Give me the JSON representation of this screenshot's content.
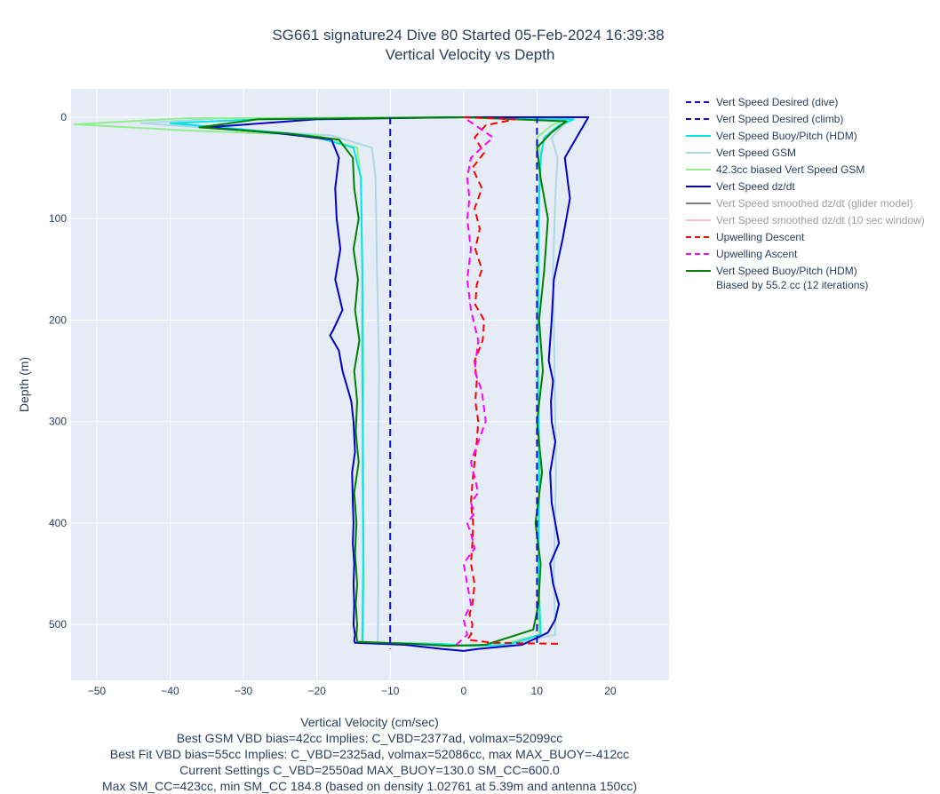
{
  "chart_data": {
    "type": "line",
    "title": "SG661 signature24 Dive 80 Started 05-Feb-2024 16:39:38",
    "subtitle": "Vertical Velocity vs Depth",
    "xlabel": "Vertical Velocity (cm/sec)",
    "ylabel": "Depth (m)",
    "xlim": [
      -53.5,
      28
    ],
    "ylim": [
      555,
      -28
    ],
    "y_reversed": true,
    "grid": true,
    "legend_position": "right",
    "x_ticks": [
      -50,
      -40,
      -30,
      -20,
      -10,
      0,
      10,
      20
    ],
    "x_tick_labels": [
      "−50",
      "−40",
      "−30",
      "−20",
      "−10",
      "0",
      "10",
      "20"
    ],
    "y_ticks": [
      0,
      100,
      200,
      300,
      400,
      500
    ],
    "y_tick_labels": [
      "0",
      "100",
      "200",
      "300",
      "400",
      "500"
    ],
    "captions": [
      "Best GSM VBD bias=42cc Implies: C_VBD=2377ad, volmax=52099cc",
      "Best Fit VBD bias=55cc Implies: C_VBD=2325ad, volmax=52086cc, max MAX_BUOY=-412cc",
      "Current Settings C_VBD=2550ad MAX_BUOY=130.0 SM_CC=600.0",
      "Max SM_CC=423cc, min SM_CC 184.8 (based on density 1.02761 at 5.39m and antenna 150cc)"
    ],
    "series": [
      {
        "name": "Vert Speed Desired (dive)",
        "color": "#1010c8",
        "dash": "dashed",
        "visible": true,
        "x": [
          -10,
          -10
        ],
        "y": [
          0,
          524
        ]
      },
      {
        "name": "Vert Speed Desired (climb)",
        "color": "#1010c8",
        "dash": "dashed",
        "visible": true,
        "x": [
          10,
          10
        ],
        "y": [
          518,
          0
        ]
      },
      {
        "name": "Vert Speed Buoy/Pitch (HDM)",
        "color": "#00e5e5",
        "dash": "solid",
        "visible": true,
        "x": [
          0,
          -28,
          -40,
          -30,
          -21,
          -15,
          -14,
          -13.8,
          -13.8,
          -13.7,
          -13.7,
          -13.8,
          -13.6,
          -4,
          1,
          6,
          10.5,
          10.2,
          10.3,
          10.1,
          10.2,
          10.3,
          10.5,
          11,
          13,
          15,
          0
        ],
        "y": [
          0,
          2,
          6,
          12,
          18,
          30,
          60,
          150,
          250,
          350,
          450,
          516,
          518,
          519,
          521,
          520,
          510,
          450,
          350,
          250,
          150,
          80,
          40,
          20,
          8,
          2,
          0
        ]
      },
      {
        "name": "Vert Speed GSM",
        "color": "#add8e6",
        "dash": "solid",
        "visible": true,
        "x": [
          0,
          -33,
          -44,
          -32,
          -18,
          -12.5,
          -12,
          -11.8,
          -11.5,
          -11.7,
          -11.6,
          -11.7,
          -11.7,
          -4,
          2,
          6,
          12.5,
          12.3,
          12.6,
          12.4,
          12.2,
          12.5,
          12.8,
          12,
          13.5,
          15,
          0
        ],
        "y": [
          0,
          1,
          6,
          12,
          18,
          30,
          60,
          150,
          250,
          350,
          450,
          516,
          518,
          519,
          521,
          520,
          510,
          450,
          350,
          250,
          150,
          80,
          40,
          20,
          8,
          2,
          0
        ]
      },
      {
        "name": "42.3cc biased Vert Speed GSM",
        "color": "#90ee90",
        "dash": "solid",
        "visible": true,
        "x": [
          0,
          -38,
          -53,
          -38,
          -20,
          -14.5,
          -14,
          -13.8,
          -13.6,
          -13.8,
          -13.6,
          -13.7,
          -13.6,
          -3,
          1,
          5,
          10.3,
          10.1,
          10.4,
          10.2,
          10,
          10.3,
          10.6,
          10,
          12,
          14,
          0
        ],
        "y": [
          0,
          1,
          7,
          13,
          18,
          30,
          60,
          150,
          250,
          350,
          450,
          516,
          518,
          519,
          521,
          520,
          510,
          450,
          350,
          250,
          150,
          80,
          40,
          20,
          8,
          2,
          0
        ]
      },
      {
        "name": "Vert Speed dz/dt",
        "color": "#0000cd",
        "dash": "solid",
        "visible": true,
        "x": [
          0,
          -20,
          -35,
          -25,
          -18,
          -17,
          -17.5,
          -17.3,
          -16.8,
          -17.5,
          -16.5,
          -17.8,
          -18.2,
          -17,
          -16.5,
          -15.3,
          -15,
          -14.8,
          -15.2,
          -15.1,
          -15,
          -15.1,
          -14.9,
          -15,
          -14.9,
          -15,
          -14.8,
          -14.9,
          -14.8,
          -8,
          -3,
          0,
          2,
          8,
          11.5,
          12.5,
          13,
          12.2,
          11.8,
          13,
          12.5,
          12,
          11.8,
          12.5,
          12,
          11.9,
          12.2,
          11.6,
          12,
          12.3,
          13.5,
          14.5,
          13.8,
          17,
          0
        ],
        "y": [
          0,
          2,
          10,
          16,
          22,
          40,
          70,
          100,
          130,
          160,
          190,
          210,
          215,
          230,
          250,
          280,
          300,
          330,
          350,
          380,
          400,
          420,
          440,
          460,
          480,
          500,
          510,
          516,
          518,
          520,
          524,
          526,
          524,
          520,
          508,
          495,
          480,
          460,
          440,
          420,
          400,
          380,
          350,
          320,
          300,
          280,
          260,
          240,
          200,
          160,
          120,
          80,
          40,
          0,
          0
        ]
      },
      {
        "name": "Vert Speed smoothed dz/dt (glider model)",
        "color": "#808080",
        "dash": "solid",
        "visible": false,
        "x": [],
        "y": []
      },
      {
        "name": "Vert Speed smoothed dz/dt (10 sec window)",
        "color": "#ffc0cb",
        "dash": "solid",
        "visible": false,
        "x": [],
        "y": []
      },
      {
        "name": "Upwelling Descent",
        "color": "#ff0000",
        "dash": "dashed",
        "visible": true,
        "x": [
          0,
          7,
          3,
          1.5,
          2.8,
          1.2,
          2.5,
          1.5,
          2.2,
          1.6,
          2.5,
          1.8,
          1.6,
          2.8,
          2.6,
          1.5,
          1.8,
          1.6,
          2,
          1.8,
          1.5,
          1.2,
          1.0,
          1.3,
          1.2,
          1.0,
          1.5,
          1.2,
          0.8,
          1.2,
          1.0,
          0.5,
          4,
          13
        ],
        "y": [
          0,
          2,
          8,
          20,
          35,
          50,
          70,
          90,
          110,
          130,
          150,
          165,
          185,
          200,
          220,
          240,
          260,
          280,
          300,
          320,
          340,
          360,
          380,
          400,
          420,
          440,
          460,
          480,
          490,
          500,
          510,
          515,
          518,
          519
        ]
      },
      {
        "name": "Upwelling Ascent",
        "color": "#ff00ff",
        "dash": "dashed",
        "visible": true,
        "x": [
          -1,
          0.5,
          0,
          1,
          0.5,
          0,
          1.5,
          1,
          0.5,
          1.5,
          1,
          2,
          1.5,
          1,
          2,
          3,
          2.5,
          1.5,
          2,
          1,
          0.5,
          1,
          0.5,
          0.8,
          0.5,
          1,
          4,
          2,
          1,
          0
        ],
        "y": [
          520,
          510,
          495,
          480,
          460,
          440,
          425,
          410,
          400,
          390,
          380,
          370,
          355,
          340,
          320,
          300,
          270,
          250,
          220,
          190,
          160,
          130,
          100,
          80,
          60,
          40,
          20,
          10,
          5,
          0
        ]
      },
      {
        "name": "Vert Speed Buoy/Pitch (HDM)",
        "name2": "Biased by 55.2 cc (12 iterations)",
        "color": "#008000",
        "dash": "solid",
        "visible": true,
        "x": [
          0,
          -28,
          -36,
          -24,
          -17,
          -15.1,
          -14.9,
          -14.3,
          -15,
          -14.4,
          -14.8,
          -14.2,
          -14.9,
          -14.5,
          -14.7,
          -14.3,
          -14.9,
          -14.6,
          -14.8,
          -14.5,
          -14.7,
          -14.5,
          -14.6,
          -14.5,
          -7,
          -2,
          3,
          9.5,
          10.2,
          10.5,
          9.8,
          10.7,
          10,
          10.8,
          10.3,
          11,
          11.5,
          10.5,
          10,
          12,
          14,
          0
        ],
        "y": [
          0,
          2,
          10,
          16,
          22,
          40,
          70,
          100,
          130,
          160,
          190,
          220,
          250,
          280,
          310,
          340,
          370,
          400,
          430,
          460,
          480,
          500,
          510,
          517,
          519,
          521,
          520,
          505,
          480,
          440,
          400,
          350,
          300,
          250,
          200,
          150,
          100,
          60,
          30,
          15,
          4,
          0
        ]
      }
    ]
  }
}
